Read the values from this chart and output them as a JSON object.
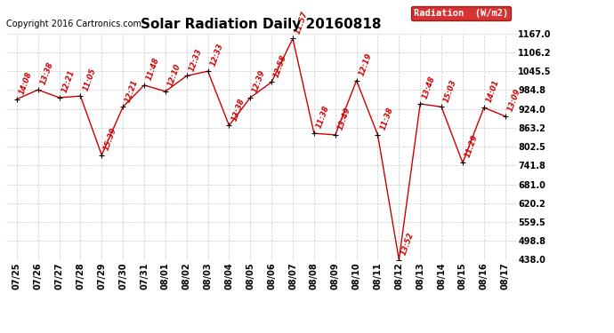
{
  "title": "Solar Radiation Daily 20160818",
  "copyright": "Copyright 2016 Cartronics.com",
  "legend_label": "Radiation  (W/m2)",
  "x_labels": [
    "07/25",
    "07/26",
    "07/27",
    "07/28",
    "07/29",
    "07/30",
    "07/31",
    "08/01",
    "08/02",
    "08/03",
    "08/04",
    "08/05",
    "08/06",
    "08/07",
    "08/08",
    "08/09",
    "08/10",
    "08/11",
    "08/12",
    "08/13",
    "08/14",
    "08/15",
    "08/16",
    "08/17"
  ],
  "y_values": [
    955,
    985,
    960,
    965,
    775,
    930,
    1000,
    980,
    1030,
    1045,
    870,
    960,
    1010,
    1150,
    845,
    840,
    1015,
    840,
    438,
    940,
    930,
    750,
    928,
    900
  ],
  "time_labels": [
    "14:08",
    "13:38",
    "12:21",
    "11:05",
    "15:39",
    "12:21",
    "11:48",
    "12:10",
    "12:33",
    "12:33",
    "13:38",
    "12:39",
    "12:58",
    "11:57",
    "11:38",
    "13:49",
    "12:19",
    "11:38",
    "13:52",
    "13:48",
    "15:03",
    "11:29",
    "14:01",
    "13:09"
  ],
  "ylim": [
    438.0,
    1167.0
  ],
  "ytick_values": [
    438.0,
    498.8,
    559.5,
    620.2,
    681.0,
    741.8,
    802.5,
    863.2,
    924.0,
    984.8,
    1045.5,
    1106.2,
    1167.0
  ],
  "ytick_labels": [
    "438.0",
    "498.8",
    "559.5",
    "620.2",
    "681.0",
    "741.8",
    "802.5",
    "863.2",
    "924.0",
    "984.8",
    "1045.5",
    "1106.2",
    "1167.0"
  ],
  "line_color": "#cc0000",
  "marker_color": "#000000",
  "bg_color": "#ffffff",
  "grid_color": "#bbbbbb",
  "title_fontsize": 11,
  "tick_fontsize": 7,
  "copyright_fontsize": 7,
  "annotation_fontsize": 6,
  "legend_bg": "#cc0000",
  "legend_text_color": "#ffffff"
}
